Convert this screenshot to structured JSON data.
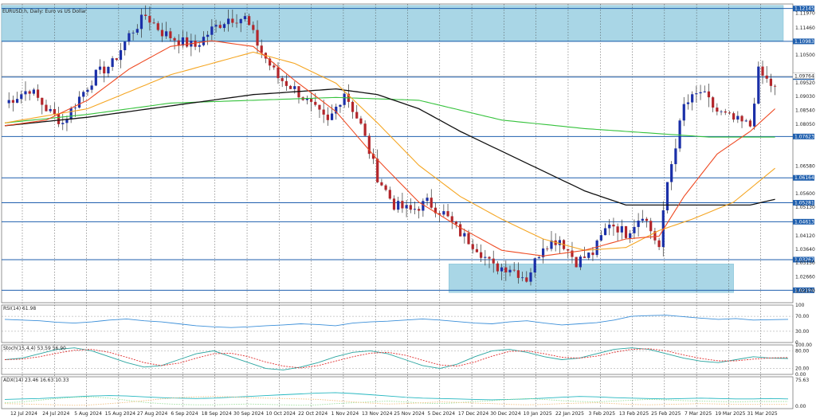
{
  "chart_data": {
    "type": "candlestick",
    "symbol_label": "EURUSD.h, Daily: Euro vs US Dollar",
    "ylim": [
      1.0175,
      1.123
    ],
    "price_ticks": [
      "1.11970",
      "1.11460",
      "1.10500",
      "1.09520",
      "1.09030",
      "1.08540",
      "1.08050",
      "1.06580",
      "1.05600",
      "1.05130",
      "1.04120",
      "1.03640",
      "1.03150",
      "1.02660",
      "1.02170"
    ],
    "levels": [
      1.1214,
      1.1098,
      1.0972,
      1.0762,
      1.0616,
      1.0528,
      1.0461,
      1.0327,
      1.0219
    ],
    "level_tags": [
      "1.12145",
      "1.10983",
      "1.09720",
      "1.07623",
      "1.06164",
      "1.05281",
      "1.04613",
      "1.03267",
      "1.02194"
    ],
    "current_price": 1.0976,
    "current_tag": "1.09764",
    "x_labels": [
      "12 Jul 2024",
      "24 Jul 2024",
      "5 Aug 2024",
      "15 Aug 2024",
      "27 Aug 2024",
      "6 Sep 2024",
      "18 Sep 2024",
      "30 Sep 2024",
      "10 Oct 2024",
      "22 Oct 2024",
      "1 Nov 2024",
      "13 Nov 2024",
      "25 Nov 2024",
      "5 Dec 2024",
      "17 Dec 2024",
      "30 Dec 2024",
      "10 Jan 2025",
      "22 Jan 2025",
      "3 Feb 2025",
      "13 Feb 2025",
      "25 Feb 2025",
      "7 Mar 2025",
      "19 Mar 2025",
      "31 Mar 2025"
    ],
    "zones": [
      {
        "from_index": 0,
        "to_index": 188,
        "top": 1.1225,
        "bottom": 1.11
      },
      {
        "from_index": 108,
        "to_index": 176,
        "top": 1.0312,
        "bottom": 1.0211
      }
    ],
    "close_path": [
      [
        0,
        1.088
      ],
      [
        6,
        1.093
      ],
      [
        10,
        1.086
      ],
      [
        14,
        1.081
      ],
      [
        18,
        1.09
      ],
      [
        22,
        1.098
      ],
      [
        26,
        1.102
      ],
      [
        30,
        1.112
      ],
      [
        34,
        1.119
      ],
      [
        38,
        1.113
      ],
      [
        42,
        1.11
      ],
      [
        46,
        1.108
      ],
      [
        50,
        1.114
      ],
      [
        54,
        1.118
      ],
      [
        58,
        1.118
      ],
      [
        62,
        1.106
      ],
      [
        66,
        1.097
      ],
      [
        70,
        1.093
      ],
      [
        74,
        1.087
      ],
      [
        78,
        1.081
      ],
      [
        82,
        1.092
      ],
      [
        86,
        1.08
      ],
      [
        90,
        1.062
      ],
      [
        94,
        1.052
      ],
      [
        98,
        1.05
      ],
      [
        102,
        1.053
      ],
      [
        106,
        1.049
      ],
      [
        110,
        1.042
      ],
      [
        114,
        1.037
      ],
      [
        118,
        1.03
      ],
      [
        122,
        1.03
      ],
      [
        126,
        1.026
      ],
      [
        130,
        1.038
      ],
      [
        134,
        1.04
      ],
      [
        138,
        1.032
      ],
      [
        142,
        1.035
      ],
      [
        146,
        1.046
      ],
      [
        150,
        1.042
      ],
      [
        154,
        1.049
      ],
      [
        158,
        1.037
      ],
      [
        160,
        1.06
      ],
      [
        164,
        1.087
      ],
      [
        168,
        1.092
      ],
      [
        172,
        1.085
      ],
      [
        176,
        1.082
      ],
      [
        180,
        1.08
      ],
      [
        182,
        1.099
      ],
      [
        184,
        1.096
      ],
      [
        186,
        1.093
      ]
    ],
    "ema_red": [
      [
        0,
        1.08
      ],
      [
        10,
        1.082
      ],
      [
        20,
        1.089
      ],
      [
        30,
        1.1
      ],
      [
        40,
        1.108
      ],
      [
        50,
        1.11
      ],
      [
        60,
        1.108
      ],
      [
        70,
        1.096
      ],
      [
        80,
        1.085
      ],
      [
        90,
        1.068
      ],
      [
        100,
        1.053
      ],
      [
        110,
        1.044
      ],
      [
        120,
        1.036
      ],
      [
        130,
        1.034
      ],
      [
        140,
        1.036
      ],
      [
        150,
        1.04
      ],
      [
        158,
        1.041
      ],
      [
        164,
        1.055
      ],
      [
        172,
        1.07
      ],
      [
        180,
        1.078
      ],
      [
        186,
        1.086
      ]
    ],
    "ema_orange": [
      [
        0,
        1.081
      ],
      [
        20,
        1.086
      ],
      [
        40,
        1.098
      ],
      [
        60,
        1.106
      ],
      [
        70,
        1.102
      ],
      [
        80,
        1.095
      ],
      [
        90,
        1.081
      ],
      [
        100,
        1.066
      ],
      [
        110,
        1.055
      ],
      [
        120,
        1.047
      ],
      [
        130,
        1.04
      ],
      [
        140,
        1.036
      ],
      [
        150,
        1.037
      ],
      [
        158,
        1.043
      ],
      [
        166,
        1.047
      ],
      [
        176,
        1.053
      ],
      [
        186,
        1.065
      ]
    ],
    "ema_green": [
      [
        0,
        1.081
      ],
      [
        20,
        1.084
      ],
      [
        40,
        1.088
      ],
      [
        60,
        1.089
      ],
      [
        80,
        1.09
      ],
      [
        100,
        1.089
      ],
      [
        120,
        1.082
      ],
      [
        140,
        1.079
      ],
      [
        160,
        1.077
      ],
      [
        170,
        1.076
      ],
      [
        180,
        1.076
      ],
      [
        186,
        1.076
      ]
    ],
    "sma_black": [
      [
        0,
        1.08
      ],
      [
        20,
        1.083
      ],
      [
        40,
        1.087
      ],
      [
        60,
        1.091
      ],
      [
        80,
        1.093
      ],
      [
        90,
        1.091
      ],
      [
        100,
        1.086
      ],
      [
        110,
        1.078
      ],
      [
        120,
        1.071
      ],
      [
        130,
        1.064
      ],
      [
        140,
        1.057
      ],
      [
        150,
        1.052
      ],
      [
        160,
        1.052
      ],
      [
        170,
        1.052
      ],
      [
        180,
        1.052
      ],
      [
        186,
        1.054
      ]
    ]
  },
  "rsi": {
    "label": "RSI(14) 61.98",
    "ticks": [
      "100",
      "70.00",
      "30.00",
      "0"
    ],
    "values": [
      62,
      60,
      58,
      54,
      52,
      55,
      60,
      63,
      58,
      55,
      50,
      45,
      42,
      40,
      42,
      45,
      47,
      50,
      48,
      45,
      52,
      55,
      57,
      60,
      63,
      60,
      56,
      52,
      50,
      55,
      58,
      52,
      47,
      50,
      53,
      60,
      70,
      72,
      73,
      69,
      65,
      62,
      64,
      60,
      61,
      62
    ]
  },
  "stoch": {
    "label": "Stoch(15,4,4) 53.59 56.90",
    "ticks": [
      "100.00",
      "80.00",
      "20.00",
      "0.00"
    ],
    "main": [
      50,
      55,
      70,
      85,
      90,
      80,
      60,
      40,
      25,
      30,
      50,
      70,
      80,
      60,
      40,
      20,
      15,
      25,
      40,
      60,
      75,
      80,
      70,
      50,
      30,
      20,
      35,
      60,
      80,
      85,
      75,
      60,
      50,
      55,
      70,
      85,
      90,
      85,
      70,
      55,
      45,
      40,
      50,
      60,
      55,
      54
    ],
    "signal": [
      50,
      52,
      60,
      72,
      82,
      85,
      75,
      58,
      40,
      30,
      38,
      55,
      70,
      72,
      60,
      42,
      28,
      22,
      30,
      45,
      60,
      72,
      75,
      65,
      48,
      32,
      28,
      42,
      62,
      78,
      80,
      70,
      58,
      55,
      62,
      75,
      85,
      87,
      80,
      66,
      54,
      46,
      46,
      52,
      56,
      57
    ]
  },
  "adx": {
    "label": "ADX(14) 23.46 16.63 10.33",
    "ticks": [
      "75.63",
      "0.00"
    ],
    "adx": [
      22,
      23,
      24,
      26,
      28,
      30,
      31,
      30,
      28,
      26,
      25,
      24,
      25,
      27,
      29,
      31,
      33,
      35,
      37,
      38,
      36,
      33,
      30,
      27,
      25,
      24,
      23,
      22,
      21,
      22,
      23,
      25,
      27,
      29,
      28,
      26,
      25,
      24,
      23,
      24,
      25,
      24,
      23,
      23,
      24,
      23
    ],
    "plus": [
      14,
      16,
      20,
      24,
      27,
      28,
      25,
      20,
      15,
      12,
      10,
      9,
      9,
      10,
      11,
      10,
      9,
      8,
      9,
      12,
      14,
      16,
      18,
      16,
      13,
      12,
      14,
      17,
      19,
      22,
      24,
      22,
      19,
      17,
      16,
      18,
      20,
      22,
      21,
      19,
      18,
      17,
      16,
      17,
      17,
      17
    ],
    "minus": [
      12,
      11,
      10,
      9,
      8,
      9,
      12,
      15,
      19,
      23,
      26,
      28,
      29,
      28,
      26,
      25,
      24,
      23,
      22,
      19,
      16,
      13,
      11,
      12,
      14,
      16,
      15,
      13,
      12,
      10,
      9,
      10,
      12,
      13,
      14,
      12,
      10,
      9,
      10,
      11,
      12,
      11,
      10,
      10,
      10,
      10
    ]
  }
}
